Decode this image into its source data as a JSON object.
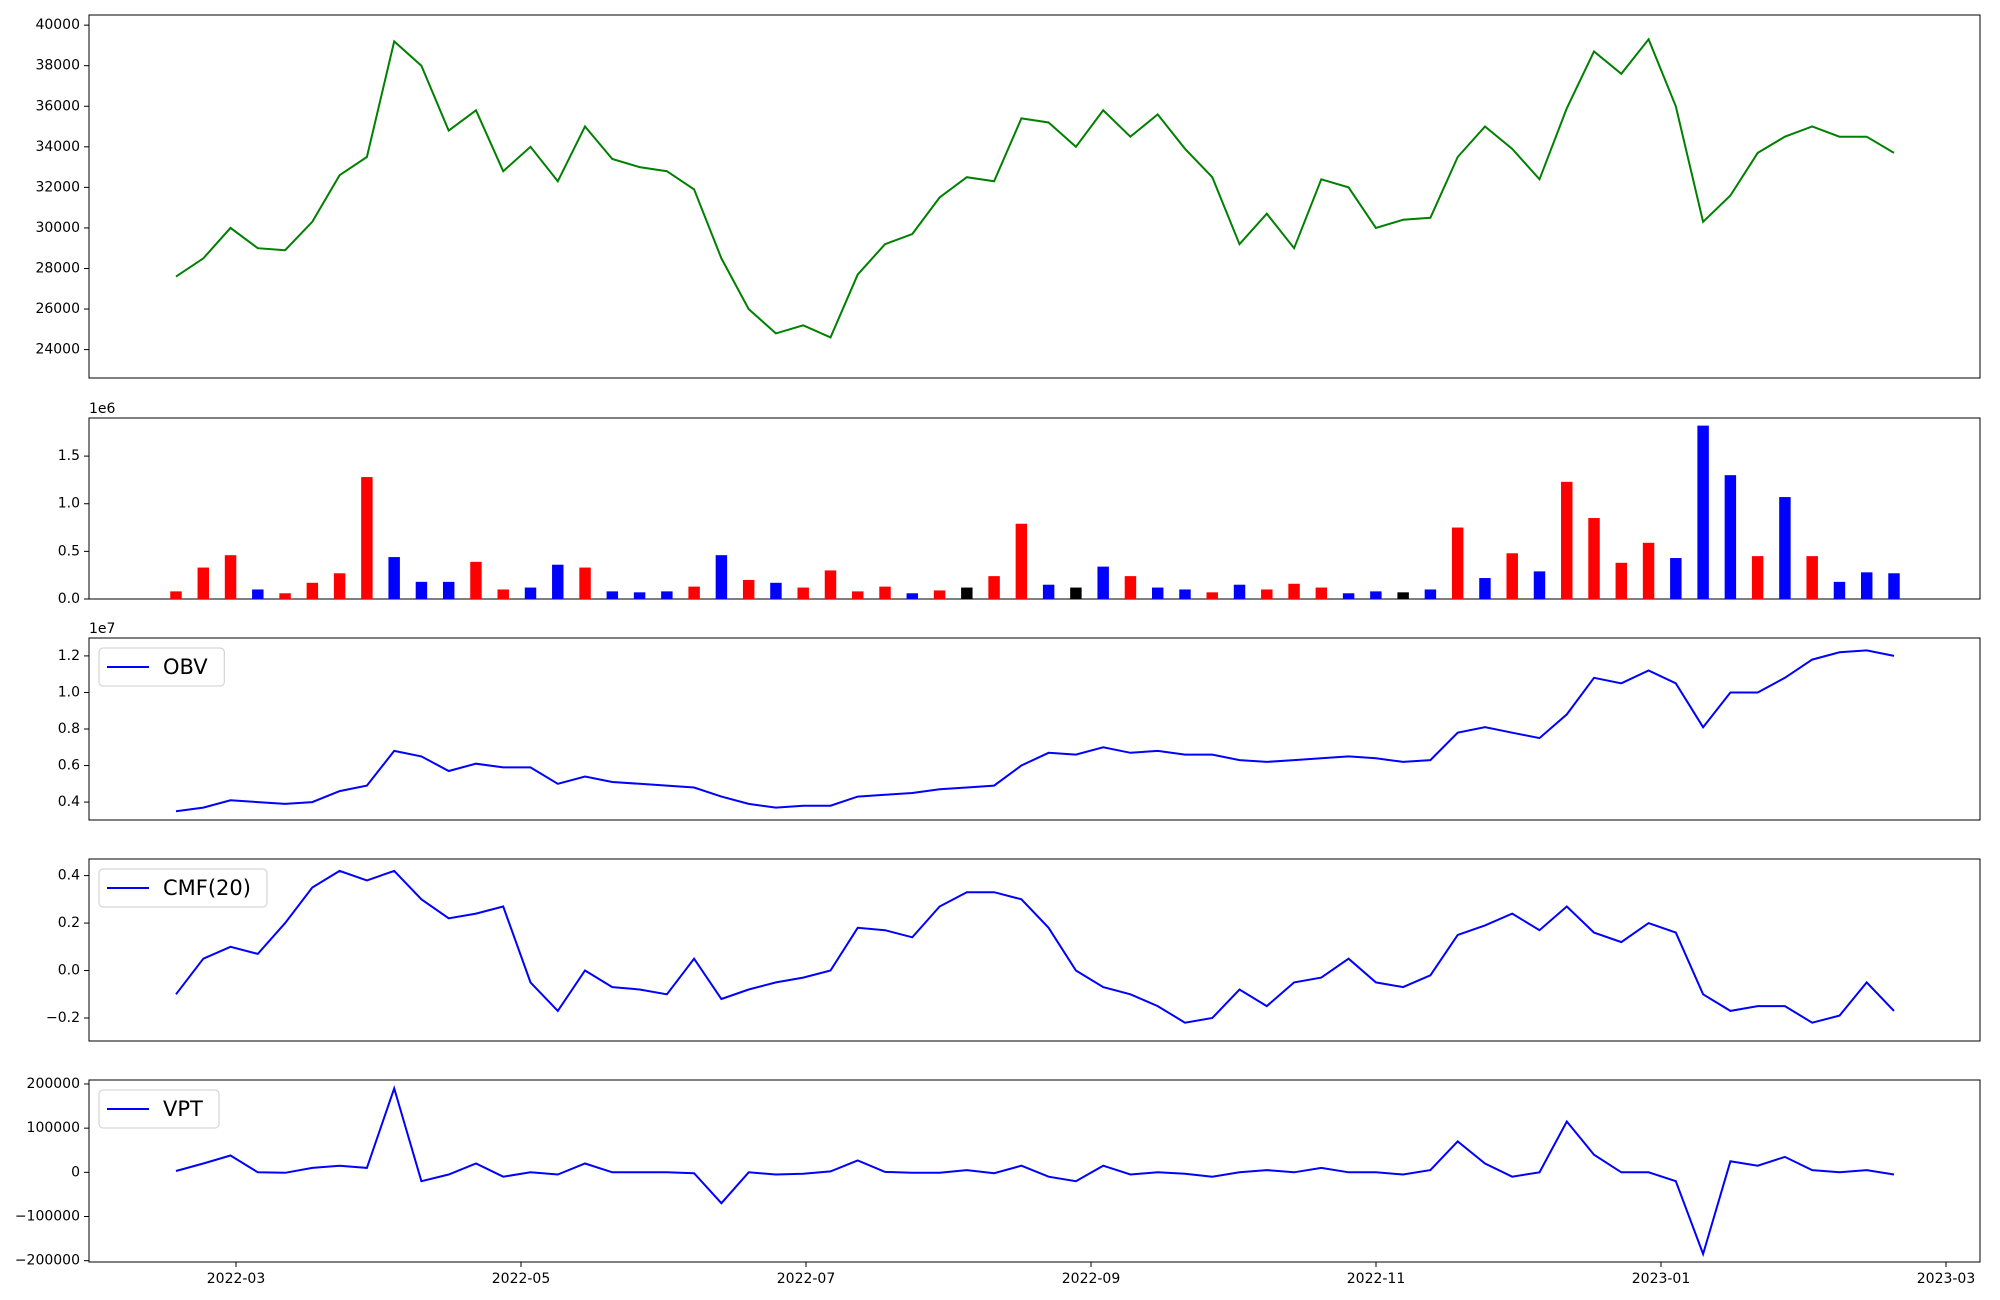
{
  "chart_data": [
    {
      "type": "line",
      "series": [
        {
          "color": "#008000",
          "values": [
            27600,
            28500,
            30000,
            29000,
            28900,
            30300,
            32600,
            33500,
            39200,
            38000,
            34800,
            35800,
            32800,
            34000,
            32300,
            35000,
            33400,
            33000,
            32800,
            31900,
            28500,
            26000,
            24800,
            25200,
            24600,
            27700,
            29200,
            29700,
            31500,
            32500,
            32300,
            35400,
            35200,
            34000,
            35800,
            34500,
            35600,
            33900,
            32500,
            29200,
            30700,
            29000,
            32400,
            32000,
            30000,
            30400,
            30500,
            33500,
            35000,
            33900,
            32400,
            35900,
            38700,
            37600,
            39300,
            36000,
            30300,
            31600,
            33700,
            34500,
            35000,
            34500,
            34500,
            33700
          ]
        }
      ],
      "ylim": [
        22600,
        40500
      ],
      "yticks": [
        24000,
        26000,
        28000,
        30000,
        32000,
        34000,
        36000,
        38000,
        40000
      ]
    },
    {
      "type": "bar",
      "values": [
        80000,
        330000,
        460000,
        100000,
        60000,
        170000,
        270000,
        1280000,
        440000,
        180000,
        180000,
        390000,
        100000,
        120000,
        360000,
        330000,
        80000,
        70000,
        80000,
        130000,
        460000,
        200000,
        170000,
        120000,
        300000,
        80000,
        130000,
        60000,
        90000,
        120000,
        240000,
        790000,
        150000,
        120000,
        340000,
        240000,
        120000,
        100000,
        70000,
        150000,
        100000,
        160000,
        120000,
        60000,
        80000,
        70000,
        100000,
        750000,
        220000,
        480000,
        290000,
        1230000,
        850000,
        380000,
        590000,
        430000,
        1820000,
        1300000,
        450000,
        1070000,
        450000,
        180000,
        280000,
        270000
      ],
      "colors": [
        "#ff0000",
        "#ff0000",
        "#ff0000",
        "#0000ff",
        "#ff0000",
        "#ff0000",
        "#ff0000",
        "#ff0000",
        "#0000ff",
        "#0000ff",
        "#0000ff",
        "#ff0000",
        "#ff0000",
        "#0000ff",
        "#0000ff",
        "#ff0000",
        "#0000ff",
        "#0000ff",
        "#0000ff",
        "#ff0000",
        "#0000ff",
        "#ff0000",
        "#0000ff",
        "#ff0000",
        "#ff0000",
        "#ff0000",
        "#ff0000",
        "#0000ff",
        "#ff0000",
        "#000000",
        "#ff0000",
        "#ff0000",
        "#0000ff",
        "#000000",
        "#0000ff",
        "#ff0000",
        "#0000ff",
        "#0000ff",
        "#ff0000",
        "#0000ff",
        "#ff0000",
        "#ff0000",
        "#ff0000",
        "#0000ff",
        "#0000ff",
        "#000000",
        "#0000ff",
        "#ff0000",
        "#0000ff",
        "#ff0000",
        "#0000ff",
        "#ff0000",
        "#ff0000",
        "#ff0000",
        "#ff0000",
        "#0000ff",
        "#0000ff",
        "#0000ff",
        "#ff0000",
        "#0000ff",
        "#ff0000",
        "#0000ff",
        "#0000ff",
        "#0000ff"
      ],
      "ylim": [
        0,
        1900000
      ],
      "yticks": [
        {
          "value": 0,
          "label": "0.0"
        },
        {
          "value": 500000,
          "label": "0.5"
        },
        {
          "value": 1000000,
          "label": "1.0"
        },
        {
          "value": 1500000,
          "label": "1.5"
        }
      ],
      "offset_label": "1e6"
    },
    {
      "type": "line",
      "series": [
        {
          "name": "OBV",
          "color": "#0000ff",
          "values": [
            3500000,
            3700000,
            4100000,
            4000000,
            3900000,
            4000000,
            4600000,
            4900000,
            6800000,
            6500000,
            5700000,
            6100000,
            5900000,
            5900000,
            5000000,
            5400000,
            5100000,
            5000000,
            4900000,
            4800000,
            4300000,
            3900000,
            3700000,
            3800000,
            3800000,
            4300000,
            4400000,
            4500000,
            4700000,
            4800000,
            4900000,
            6000000,
            6700000,
            6600000,
            7000000,
            6700000,
            6800000,
            6600000,
            6600000,
            6300000,
            6200000,
            6300000,
            6400000,
            6500000,
            6400000,
            6200000,
            6300000,
            7800000,
            8100000,
            7800000,
            7500000,
            8800000,
            10800000,
            10500000,
            11200000,
            10500000,
            8100000,
            10000000,
            10000000,
            10800000,
            11800000,
            12200000,
            12300000,
            12000000
          ]
        }
      ],
      "ylim": [
        3020000,
        12980000
      ],
      "yticks": [
        {
          "value": 4000000,
          "label": "0.4"
        },
        {
          "value": 6000000,
          "label": "0.6"
        },
        {
          "value": 8000000,
          "label": "0.8"
        },
        {
          "value": 10000000,
          "label": "1.0"
        },
        {
          "value": 12000000,
          "label": "1.2"
        }
      ],
      "offset_label": "1e7",
      "legend": "upper left"
    },
    {
      "type": "line",
      "series": [
        {
          "name": "CMF(20)",
          "color": "#0000ff",
          "values": [
            -0.1,
            0.05,
            0.1,
            0.07,
            0.2,
            0.35,
            0.42,
            0.38,
            0.42,
            0.3,
            0.22,
            0.24,
            0.27,
            -0.05,
            -0.17,
            0.0,
            -0.07,
            -0.08,
            -0.1,
            0.05,
            -0.12,
            -0.08,
            -0.05,
            -0.03,
            0.0,
            0.18,
            0.17,
            0.14,
            0.27,
            0.33,
            0.33,
            0.3,
            0.18,
            0.0,
            -0.07,
            -0.1,
            -0.15,
            -0.22,
            -0.2,
            -0.08,
            -0.15,
            -0.05,
            -0.03,
            0.05,
            -0.05,
            -0.07,
            -0.02,
            0.15,
            0.19,
            0.24,
            0.17,
            0.27,
            0.16,
            0.12,
            0.2,
            0.16,
            -0.1,
            -0.17,
            -0.15,
            -0.15,
            -0.22,
            -0.19,
            -0.05,
            -0.17
          ]
        }
      ],
      "ylim": [
        -0.297,
        0.47
      ],
      "yticks": [
        {
          "value": -0.2,
          "label": "−0.2"
        },
        {
          "value": 0,
          "label": "0.0"
        },
        {
          "value": 0.2,
          "label": "0.2"
        },
        {
          "value": 0.4,
          "label": "0.4"
        }
      ],
      "legend": "upper left"
    },
    {
      "type": "line",
      "series": [
        {
          "name": "VPT",
          "color": "#0000ff",
          "values": [
            3000,
            20000,
            38000,
            0,
            -1000,
            10000,
            15000,
            10000,
            190000,
            -20000,
            -5000,
            20000,
            -10000,
            0,
            -5000,
            20000,
            0,
            0,
            0,
            -2000,
            -70000,
            0,
            -5000,
            -3000,
            2000,
            27000,
            1000,
            -1000,
            -1000,
            5000,
            -2000,
            15000,
            -10000,
            -20000,
            15000,
            -5000,
            0,
            -3000,
            -10000,
            0,
            5000,
            0,
            10000,
            0,
            0,
            -5000,
            5000,
            70000,
            20000,
            -10000,
            0,
            115000,
            40000,
            0,
            0,
            -20000,
            -185000,
            25000,
            15000,
            35000,
            5000,
            0,
            5000,
            -5000
          ]
        }
      ],
      "ylim": [
        -203000,
        209000
      ],
      "yticks": [
        {
          "value": -200000,
          "label": "−200000"
        },
        {
          "value": -100000,
          "label": "−100000"
        },
        0,
        100000,
        200000
      ],
      "legend": "upper left",
      "xticks": [
        "2022-03",
        "2022-05",
        "2022-07",
        "2022-09",
        "2022-11",
        "2023-01",
        "2023-03"
      ]
    }
  ]
}
